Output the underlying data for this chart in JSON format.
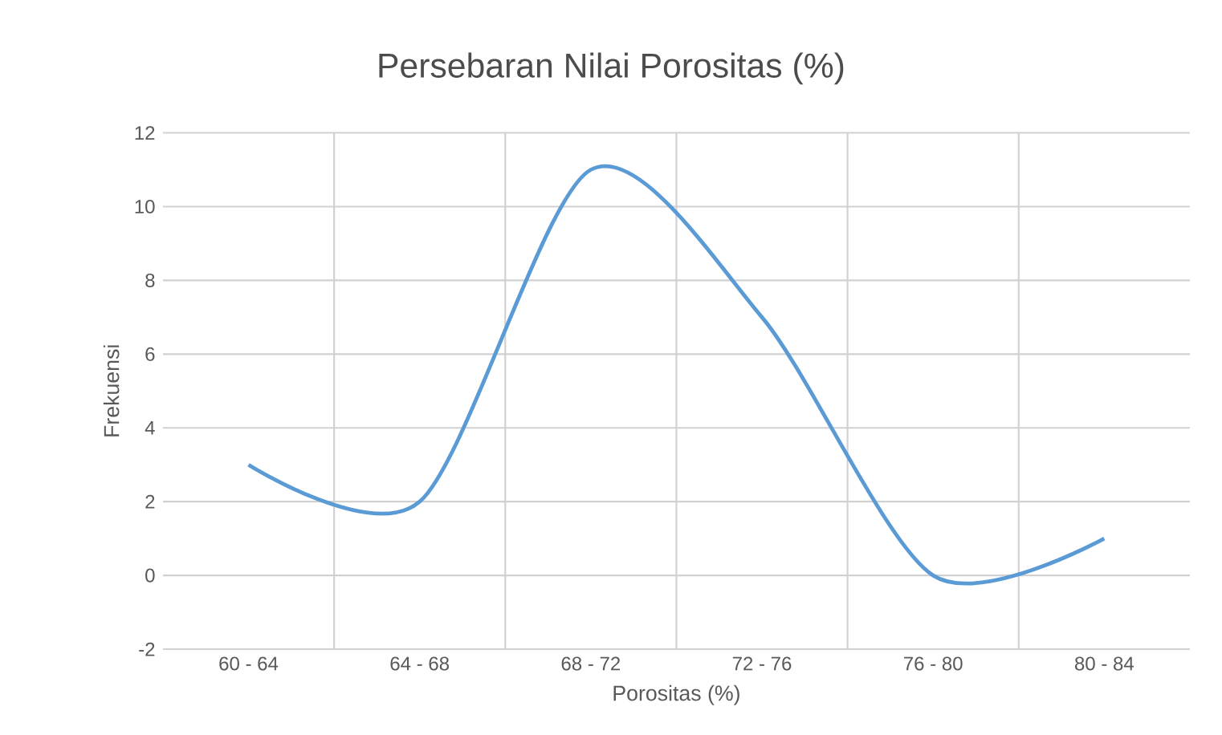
{
  "chart_data": {
    "type": "line",
    "title": "Persebaran Nilai Porositas (%)",
    "xlabel": "Porositas (%)",
    "ylabel": "Frekuensi",
    "categories": [
      "60 - 64",
      "64 - 68",
      "68 - 72",
      "72 - 76",
      "76 - 80",
      "80 -  84"
    ],
    "series": [
      {
        "color": "#5b9bd5",
        "values": [
          3,
          2,
          11,
          7,
          0,
          1
        ]
      }
    ],
    "ylim": [
      -2,
      12
    ],
    "yticks": [
      -2,
      0,
      2,
      4,
      6,
      8,
      10,
      12
    ],
    "grid": true,
    "marker": "none",
    "line_style": "solid"
  }
}
